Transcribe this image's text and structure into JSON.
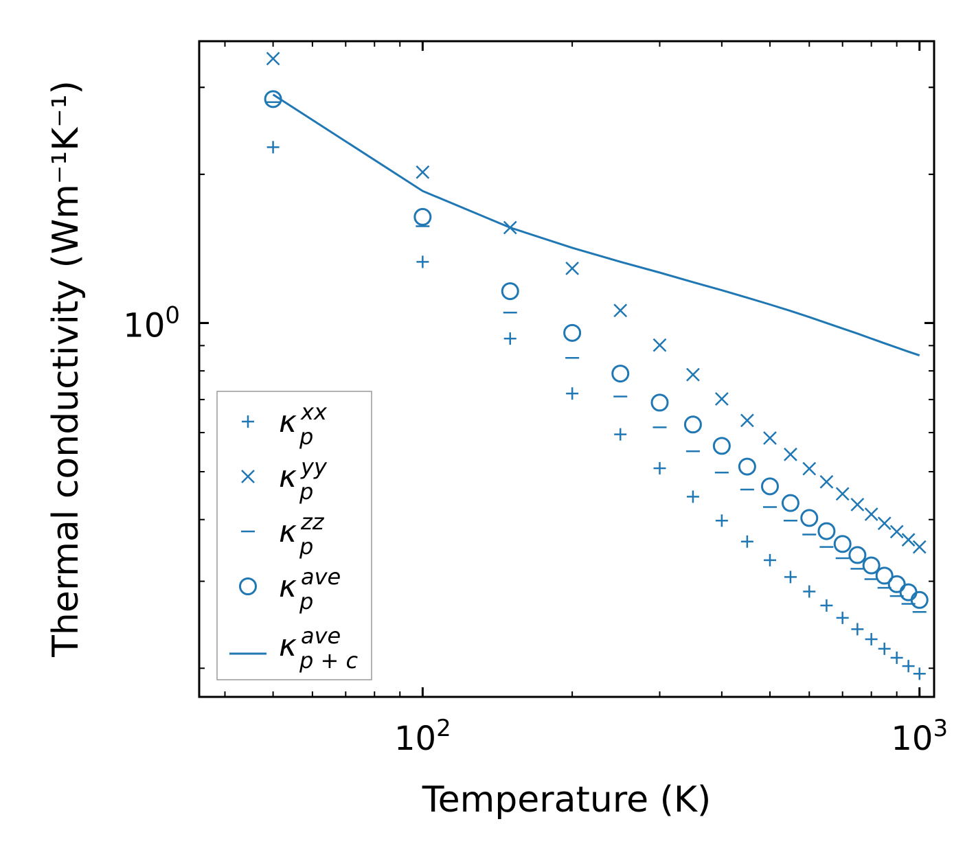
{
  "chart_data": {
    "type": "scatter",
    "title": "",
    "xlabel": "Temperature (K)",
    "ylabel": "Thermal conductivity (Wm⁻¹K⁻¹)",
    "xscale": "log",
    "yscale": "log",
    "xlim": [
      35.5,
      1070
    ],
    "ylim": [
      0.175,
      3.72
    ],
    "x_tick_labels": [
      {
        "base": "10",
        "exp": "2",
        "value": 100
      },
      {
        "base": "10",
        "exp": "3",
        "value": 1000
      }
    ],
    "y_tick_labels": [
      {
        "base": "10",
        "exp": "0",
        "value": 1
      }
    ],
    "legend_position": "lower-left",
    "colors": {
      "series": "#1f77b4",
      "axis": "#000000",
      "legend_border": "#999999"
    },
    "x": [
      50,
      100,
      150,
      200,
      250,
      300,
      350,
      400,
      450,
      500,
      550,
      600,
      650,
      700,
      750,
      800,
      850,
      900,
      950,
      1000
    ],
    "series": [
      {
        "name": "kappa_p^xx",
        "label": "κ",
        "sub": "p",
        "sup": "xx",
        "marker": "plus",
        "values": [
          2.27,
          1.33,
          0.93,
          0.72,
          0.595,
          0.508,
          0.445,
          0.398,
          0.361,
          0.331,
          0.306,
          0.286,
          0.268,
          0.253,
          0.24,
          0.229,
          0.219,
          0.21,
          0.202,
          0.195
        ]
      },
      {
        "name": "kappa_p^yy",
        "label": "κ",
        "sub": "p",
        "sup": "yy",
        "marker": "x",
        "values": [
          3.43,
          2.02,
          1.56,
          1.29,
          1.06,
          0.902,
          0.786,
          0.702,
          0.635,
          0.585,
          0.542,
          0.507,
          0.477,
          0.451,
          0.429,
          0.41,
          0.393,
          0.378,
          0.364,
          0.352
        ]
      },
      {
        "name": "kappa_p^zz",
        "label": "κ",
        "sub": "p",
        "sup": "zz",
        "marker": "dash",
        "values": [
          2.8,
          1.57,
          1.05,
          0.85,
          0.71,
          0.615,
          0.55,
          0.498,
          0.46,
          0.424,
          0.398,
          0.373,
          0.352,
          0.334,
          0.318,
          0.303,
          0.291,
          0.28,
          0.27,
          0.26
        ]
      },
      {
        "name": "kappa_p^ave",
        "label": "κ",
        "sub": "p",
        "sup": "ave",
        "marker": "circle",
        "values": [
          2.84,
          1.64,
          1.16,
          0.955,
          0.79,
          0.69,
          0.623,
          0.564,
          0.512,
          0.467,
          0.432,
          0.403,
          0.379,
          0.357,
          0.339,
          0.323,
          0.308,
          0.296,
          0.285,
          0.275
        ]
      },
      {
        "name": "kappa_p+c^ave",
        "label": "κ",
        "sub": "p + c",
        "sup": "ave",
        "marker": "line",
        "values": [
          2.9,
          1.85,
          1.56,
          1.42,
          1.33,
          1.265,
          1.21,
          1.165,
          1.125,
          1.09,
          1.058,
          1.028,
          1.0,
          0.975,
          0.952,
          0.93,
          0.91,
          0.892,
          0.875,
          0.86
        ]
      }
    ]
  }
}
